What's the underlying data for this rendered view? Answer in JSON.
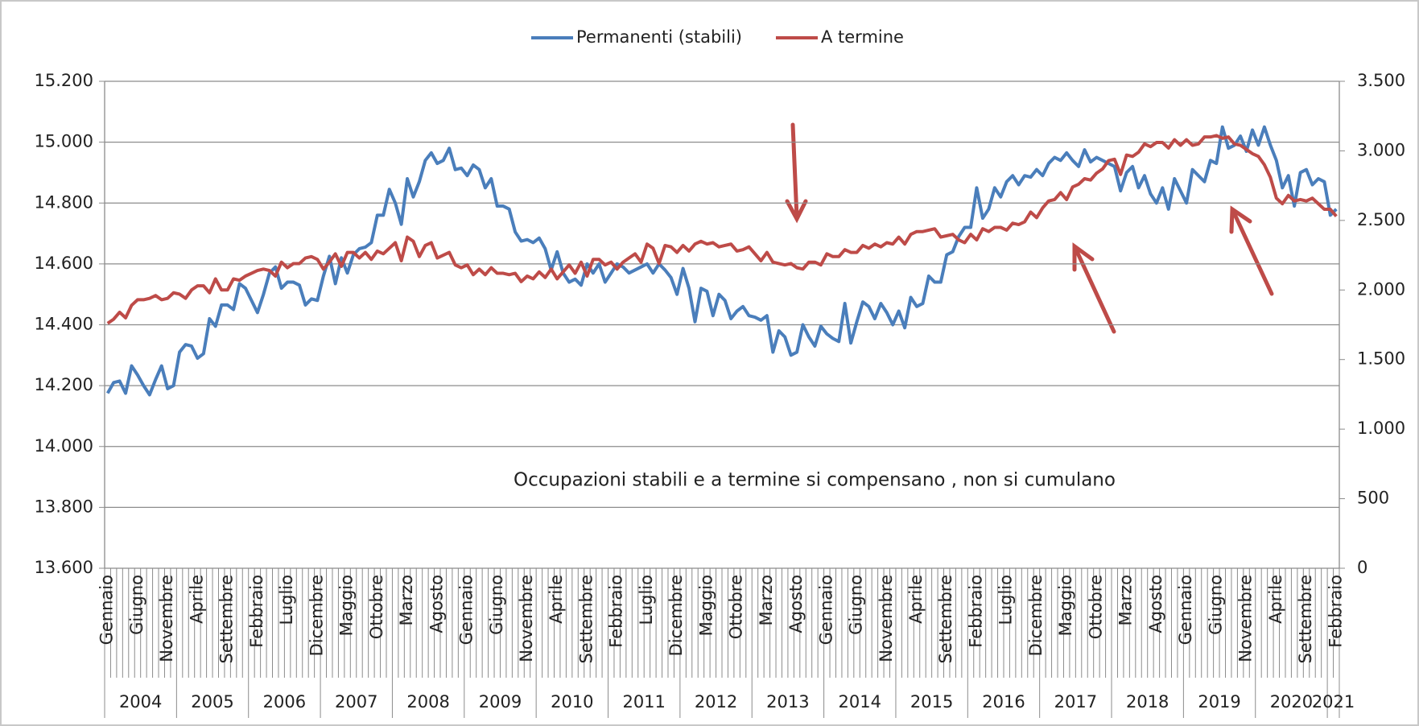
{
  "chart_data": {
    "type": "line",
    "annotation": "Occupazioni  stabili  e a termine si compensano , non si cumulano",
    "categories": [
      "Gennaio",
      null,
      null,
      null,
      null,
      "Giugno",
      null,
      null,
      null,
      null,
      "Novembre",
      null,
      null,
      null,
      null,
      "Aprile",
      null,
      null,
      null,
      null,
      "Settembre",
      null,
      null,
      null,
      null,
      "Febbraio",
      null,
      null,
      null,
      null,
      "Luglio",
      null,
      null,
      null,
      null,
      "Dicembre",
      null,
      null,
      null,
      null,
      "Maggio",
      null,
      null,
      null,
      null,
      "Ottobre",
      null,
      null,
      null,
      null,
      "Marzo",
      null,
      null,
      null,
      null,
      "Agosto",
      null,
      null,
      null,
      null,
      "Gennaio",
      null,
      null,
      null,
      null,
      "Giugno",
      null,
      null,
      null,
      null,
      "Novembre",
      null,
      null,
      null,
      null,
      "Aprile",
      null,
      null,
      null,
      null,
      "Settembre",
      null,
      null,
      null,
      null,
      "Febbraio",
      null,
      null,
      null,
      null,
      "Luglio",
      null,
      null,
      null,
      null,
      "Dicembre",
      null,
      null,
      null,
      null,
      "Maggio",
      null,
      null,
      null,
      null,
      "Ottobre",
      null,
      null,
      null,
      null,
      "Marzo",
      null,
      null,
      null,
      null,
      "Agosto",
      null,
      null,
      null,
      null,
      "Gennaio",
      null,
      null,
      null,
      null,
      "Giugno",
      null,
      null,
      null,
      null,
      "Novembre",
      null,
      null,
      null,
      null,
      "Aprile",
      null,
      null,
      null,
      null,
      "Settembre",
      null,
      null,
      null,
      null,
      "Febbraio",
      null,
      null,
      null,
      null,
      "Luglio",
      null,
      null,
      null,
      null,
      "Dicembre",
      null,
      null,
      null,
      null,
      "Maggio",
      null,
      null,
      null,
      null,
      "Ottobre",
      null,
      null,
      null,
      null,
      "Marzo",
      null,
      null,
      null,
      null,
      "Agosto",
      null,
      null,
      null,
      null,
      "Gennaio",
      null,
      null,
      null,
      null,
      "Giugno",
      null,
      null,
      null,
      null,
      "Novembre",
      null,
      null,
      null,
      null,
      "Aprile",
      null,
      null,
      null,
      null,
      "Settembre",
      null,
      null,
      null,
      null,
      "Febbraio"
    ],
    "years": [
      "2004",
      "2005",
      "2006",
      "2007",
      "2008",
      "2009",
      "2010",
      "2011",
      "2012",
      "2013",
      "2014",
      "2015",
      "2016",
      "2017",
      "2018",
      "2019",
      "2020",
      "2021"
    ],
    "series": [
      {
        "name": "Permanenti (stabili)",
        "color": "#4a7ebb",
        "values": [
          14175,
          14210,
          14215,
          14175,
          14265,
          14235,
          14200,
          14170,
          14220,
          14265,
          14190,
          14200,
          14310,
          14335,
          14330,
          14290,
          14305,
          14420,
          14395,
          14465,
          14465,
          14450,
          14535,
          14520,
          14480,
          14440,
          14500,
          14570,
          14590,
          14520,
          14540,
          14540,
          14530,
          14465,
          14485,
          14480,
          14560,
          14625,
          14535,
          14620,
          14570,
          14630,
          14650,
          14655,
          14670,
          14760,
          14760,
          14845,
          14800,
          14730,
          14880,
          14820,
          14870,
          14940,
          14965,
          14930,
          14940,
          14980,
          14910,
          14915,
          14890,
          14925,
          14910,
          14850,
          14880,
          14790,
          14790,
          14780,
          14705,
          14675,
          14680,
          14670,
          14685,
          14650,
          14580,
          14640,
          14570,
          14540,
          14550,
          14530,
          14600,
          14570,
          14600,
          14540,
          14570,
          14600,
          14590,
          14570,
          14580,
          14590,
          14600,
          14570,
          14600,
          14580,
          14555,
          14500,
          14585,
          14520,
          14410,
          14520,
          14510,
          14430,
          14500,
          14480,
          14420,
          14445,
          14460,
          14430,
          14425,
          14415,
          14430,
          14310,
          14380,
          14360,
          14300,
          14310,
          14400,
          14360,
          14330,
          14395,
          14370,
          14355,
          14345,
          14470,
          14340,
          14410,
          14475,
          14460,
          14420,
          14470,
          14440,
          14400,
          14445,
          14390,
          14490,
          14460,
          14470,
          14560,
          14540,
          14540,
          14630,
          14640,
          14690,
          14720,
          14720,
          14850,
          14750,
          14780,
          14850,
          14820,
          14870,
          14890,
          14860,
          14890,
          14885,
          14910,
          14890,
          14930,
          14950,
          14940,
          14965,
          14940,
          14920,
          14975,
          14935,
          14950,
          14940,
          14930,
          14920,
          14840,
          14900,
          14920,
          14850,
          14890,
          14830,
          14800,
          14850,
          14780,
          14880,
          14840,
          14800,
          14910,
          14890,
          14870,
          14940,
          14930,
          15050,
          14980,
          14990,
          15020,
          14970,
          15040,
          14990,
          15050,
          14990,
          14940,
          14850,
          14890,
          14790,
          14900,
          14910,
          14860,
          14880,
          14870,
          14760,
          14780
        ]
      },
      {
        "name": "A termine",
        "color": "#be4b48",
        "axis": "y2",
        "values": [
          1760,
          1790,
          1840,
          1800,
          1890,
          1930,
          1930,
          1940,
          1960,
          1930,
          1940,
          1980,
          1970,
          1940,
          2000,
          2030,
          2030,
          1980,
          2080,
          2000,
          2000,
          2080,
          2070,
          2100,
          2120,
          2140,
          2150,
          2140,
          2100,
          2200,
          2160,
          2190,
          2190,
          2230,
          2240,
          2220,
          2150,
          2200,
          2260,
          2170,
          2270,
          2270,
          2230,
          2270,
          2220,
          2280,
          2260,
          2300,
          2340,
          2210,
          2380,
          2350,
          2240,
          2320,
          2340,
          2230,
          2250,
          2270,
          2180,
          2160,
          2180,
          2110,
          2150,
          2110,
          2160,
          2120,
          2120,
          2110,
          2120,
          2060,
          2100,
          2080,
          2130,
          2090,
          2150,
          2080,
          2130,
          2180,
          2120,
          2200,
          2100,
          2220,
          2220,
          2180,
          2200,
          2150,
          2200,
          2230,
          2260,
          2200,
          2330,
          2300,
          2190,
          2320,
          2310,
          2270,
          2320,
          2280,
          2330,
          2350,
          2330,
          2340,
          2310,
          2320,
          2330,
          2280,
          2290,
          2310,
          2260,
          2210,
          2270,
          2200,
          2190,
          2180,
          2190,
          2160,
          2150,
          2200,
          2200,
          2180,
          2260,
          2240,
          2240,
          2290,
          2270,
          2270,
          2320,
          2300,
          2330,
          2310,
          2340,
          2330,
          2380,
          2330,
          2400,
          2420,
          2420,
          2430,
          2440,
          2380,
          2390,
          2400,
          2360,
          2340,
          2400,
          2360,
          2440,
          2420,
          2450,
          2450,
          2430,
          2480,
          2470,
          2490,
          2560,
          2520,
          2590,
          2640,
          2650,
          2700,
          2650,
          2740,
          2760,
          2800,
          2790,
          2840,
          2870,
          2930,
          2940,
          2830,
          2970,
          2960,
          2990,
          3050,
          3030,
          3060,
          3060,
          3020,
          3080,
          3040,
          3080,
          3040,
          3050,
          3100,
          3100,
          3110,
          3090,
          3100,
          3050,
          3040,
          3010,
          2980,
          2960,
          2900,
          2810,
          2660,
          2620,
          2680,
          2640,
          2650,
          2640,
          2660,
          2620,
          2580,
          2580,
          2530
        ]
      }
    ],
    "ylim": [
      13600,
      15200
    ],
    "yticks": [
      {
        "value": 13600,
        "label": "13.600"
      },
      {
        "value": 13800,
        "label": "13.800"
      },
      {
        "value": 14000,
        "label": "14.000"
      },
      {
        "value": 14200,
        "label": "14.200"
      },
      {
        "value": 14400,
        "label": "14.400"
      },
      {
        "value": 14600,
        "label": "14.600"
      },
      {
        "value": 14800,
        "label": "14.800"
      },
      {
        "value": 15000,
        "label": "15.000"
      },
      {
        "value": 15200,
        "label": "15.200"
      }
    ],
    "y2lim": [
      0,
      3500
    ],
    "y2ticks": [
      0,
      500,
      {
        "value": 1000,
        "label": "1.000"
      },
      {
        "value": 1500,
        "label": "1.500"
      },
      {
        "value": 2000,
        "label": "2.000"
      },
      {
        "value": 2500,
        "label": "2.500"
      },
      {
        "value": 3000,
        "label": "3.000"
      },
      {
        "value": 3500,
        "label": "3.500"
      }
    ],
    "grid": true,
    "legend": "top"
  }
}
